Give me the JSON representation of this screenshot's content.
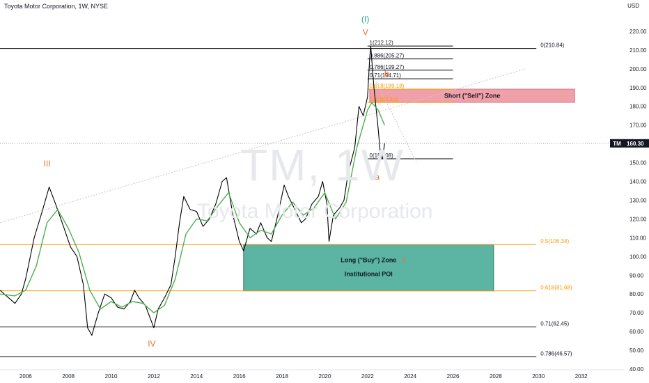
{
  "header": {
    "symbol_title": "Toyota Motor Corporation, 1W, NYSE",
    "currency": "USD"
  },
  "watermark": {
    "big": "TM, 1W",
    "small": "Toyota Motor Corporation"
  },
  "price_tag": {
    "symbol": "TM",
    "value": "160.30",
    "price": 160.3
  },
  "colors": {
    "price_line": "#000000",
    "ma_line": "#4caf50",
    "fib_gold": "#ff9800",
    "fib_black": "#000000",
    "sell_zone": "#f0a0a8",
    "buy_zone": "#5bb5a2",
    "wave_label": "#e8732e",
    "wave_I_label": "#26a69a"
  },
  "chart_data": {
    "type": "line",
    "title": "Toyota Motor Corporation, 1W, NYSE",
    "ylabel": "USD",
    "ylim": [
      40,
      230
    ],
    "y_ticks": [
      40,
      50,
      60,
      70,
      80,
      90,
      100,
      110,
      120,
      130,
      140,
      150,
      160,
      170,
      180,
      190,
      200,
      210,
      220
    ],
    "x_range": [
      2004.8,
      2034.0
    ],
    "x_ticks": [
      "2006",
      "2008",
      "2010",
      "2012",
      "2014",
      "2016",
      "2018",
      "2020",
      "2022",
      "2024",
      "2026",
      "2028",
      "2030",
      "2032"
    ],
    "grid": false,
    "series": [
      {
        "values_xy": [
          [
            2004.8,
            82
          ],
          [
            2005.2,
            78
          ],
          [
            2005.5,
            75
          ],
          [
            2005.8,
            80
          ],
          [
            2006.0,
            88
          ],
          [
            2006.4,
            110
          ],
          [
            2006.8,
            125
          ],
          [
            2007.1,
            137
          ],
          [
            2007.4,
            128
          ],
          [
            2007.8,
            115
          ],
          [
            2008.1,
            105
          ],
          [
            2008.4,
            100
          ],
          [
            2008.7,
            85
          ],
          [
            2008.9,
            62
          ],
          [
            2009.1,
            58
          ],
          [
            2009.4,
            70
          ],
          [
            2009.7,
            80
          ],
          [
            2010.0,
            78
          ],
          [
            2010.3,
            73
          ],
          [
            2010.6,
            72
          ],
          [
            2010.9,
            76
          ],
          [
            2011.1,
            82
          ],
          [
            2011.3,
            78
          ],
          [
            2011.6,
            74
          ],
          [
            2011.8,
            68
          ],
          [
            2012.0,
            62
          ],
          [
            2012.2,
            72
          ],
          [
            2012.5,
            78
          ],
          [
            2012.8,
            85
          ],
          [
            2013.0,
            100
          ],
          [
            2013.2,
            118
          ],
          [
            2013.4,
            132
          ],
          [
            2013.7,
            125
          ],
          [
            2014.0,
            124
          ],
          [
            2014.3,
            116
          ],
          [
            2014.6,
            120
          ],
          [
            2014.9,
            128
          ],
          [
            2015.2,
            140
          ],
          [
            2015.4,
            142
          ],
          [
            2015.7,
            122
          ],
          [
            2016.0,
            108
          ],
          [
            2016.2,
            103
          ],
          [
            2016.5,
            115
          ],
          [
            2016.8,
            112
          ],
          [
            2017.0,
            118
          ],
          [
            2017.3,
            110
          ],
          [
            2017.5,
            108
          ],
          [
            2017.8,
            122
          ],
          [
            2018.1,
            138
          ],
          [
            2018.3,
            132
          ],
          [
            2018.6,
            125
          ],
          [
            2018.9,
            118
          ],
          [
            2019.1,
            120
          ],
          [
            2019.4,
            128
          ],
          [
            2019.7,
            132
          ],
          [
            2019.9,
            140
          ],
          [
            2020.1,
            128
          ],
          [
            2020.2,
            108
          ],
          [
            2020.4,
            122
          ],
          [
            2020.7,
            126
          ],
          [
            2020.9,
            130
          ],
          [
            2021.1,
            145
          ],
          [
            2021.4,
            158
          ],
          [
            2021.6,
            180
          ],
          [
            2021.8,
            175
          ],
          [
            2022.0,
            185
          ],
          [
            2022.1,
            205
          ],
          [
            2022.15,
            212.12
          ],
          [
            2022.3,
            190
          ],
          [
            2022.5,
            168
          ],
          [
            2022.6,
            155
          ],
          [
            2022.7,
            152.08
          ],
          [
            2022.8,
            160.3
          ]
        ]
      },
      {
        "name": "moving average",
        "values_xy": [
          [
            2004.8,
            80
          ],
          [
            2005.5,
            79
          ],
          [
            2006.0,
            82
          ],
          [
            2006.5,
            95
          ],
          [
            2007.0,
            118
          ],
          [
            2007.5,
            125
          ],
          [
            2008.0,
            115
          ],
          [
            2008.5,
            102
          ],
          [
            2009.0,
            82
          ],
          [
            2009.5,
            72
          ],
          [
            2010.0,
            76
          ],
          [
            2010.5,
            73
          ],
          [
            2011.0,
            76
          ],
          [
            2011.5,
            75
          ],
          [
            2012.0,
            70
          ],
          [
            2012.5,
            74
          ],
          [
            2013.0,
            88
          ],
          [
            2013.5,
            112
          ],
          [
            2014.0,
            120
          ],
          [
            2014.5,
            119
          ],
          [
            2015.0,
            127
          ],
          [
            2015.5,
            134
          ],
          [
            2016.0,
            118
          ],
          [
            2016.5,
            110
          ],
          [
            2017.0,
            114
          ],
          [
            2017.5,
            112
          ],
          [
            2018.0,
            122
          ],
          [
            2018.5,
            129
          ],
          [
            2019.0,
            122
          ],
          [
            2019.5,
            126
          ],
          [
            2020.0,
            134
          ],
          [
            2020.5,
            120
          ],
          [
            2021.0,
            129
          ],
          [
            2021.5,
            158
          ],
          [
            2022.0,
            178
          ],
          [
            2022.2,
            182
          ],
          [
            2022.5,
            178
          ],
          [
            2022.8,
            170
          ]
        ]
      }
    ],
    "fib_levels": [
      {
        "label": "1(212.12)",
        "price": 212.12,
        "x_start": 2022.0,
        "x_end": 2026.0,
        "color": "#000000"
      },
      {
        "label": "0.886(205.27)",
        "price": 205.27,
        "x_start": 2022.0,
        "x_end": 2026.0,
        "color": "#000000"
      },
      {
        "label": "0.786(199.27)",
        "price": 199.27,
        "x_start": 2022.0,
        "x_end": 2026.0,
        "color": "#000000"
      },
      {
        "label": "0.71(194.71)",
        "price": 194.71,
        "x_start": 2022.0,
        "x_end": 2026.0,
        "color": "#000000"
      },
      {
        "label": "0.618(189.18)",
        "price": 189.18,
        "x_start": 2022.0,
        "x_end": 2026.0,
        "color": "#ff9800"
      },
      {
        "label": "0.5(182.10)",
        "price": 182.1,
        "x_start": 2022.0,
        "x_end": 2026.0,
        "color": "#ff9800"
      },
      {
        "label": "0(152.08)",
        "price": 152.08,
        "x_start": 2022.0,
        "x_end": 2026.0,
        "color": "#000000"
      },
      {
        "label": "0(210.84)",
        "price": 210.84,
        "x_start": 2004.8,
        "x_end": 2029.9,
        "color": "#000000"
      },
      {
        "label": "0.5(106.34)",
        "price": 106.34,
        "x_start": 2004.8,
        "x_end": 2029.9,
        "color": "#ff9800"
      },
      {
        "label": "0.618(81.68)",
        "price": 81.68,
        "x_start": 2004.8,
        "x_end": 2029.9,
        "color": "#ff9800"
      },
      {
        "label": "0.71(62.45)",
        "price": 62.45,
        "x_start": 2004.8,
        "x_end": 2029.9,
        "color": "#000000"
      },
      {
        "label": "0.786(46.57)",
        "price": 46.57,
        "x_start": 2004.8,
        "x_end": 2029.9,
        "color": "#000000"
      }
    ],
    "zones": [
      {
        "label": "Short (\"Sell\") Zone",
        "x_start": 2022.1,
        "x_end": 2031.7,
        "y_low": 182.1,
        "y_high": 189.18,
        "color": "#f0a0a8"
      },
      {
        "label": "Long (\"Buy\") Zone",
        "sublabel": "Institutional POI",
        "x_start": 2016.2,
        "x_end": 2027.9,
        "y_low": 81.68,
        "y_high": 106.34,
        "color": "#5bb5a2"
      }
    ],
    "wave_labels": [
      {
        "text": "III",
        "x": 2007.0,
        "y": 148
      },
      {
        "text": "IV",
        "x": 2011.9,
        "y": 52
      },
      {
        "text": "(I)",
        "x": 2021.9,
        "y": 225
      },
      {
        "text": "V",
        "x": 2021.9,
        "y": 218
      },
      {
        "text": "a",
        "x": 2022.45,
        "y": 141
      },
      {
        "text": "b",
        "x": 2022.9,
        "y": 196
      },
      {
        "text": "c",
        "x": 2023.7,
        "y": 97
      }
    ]
  }
}
